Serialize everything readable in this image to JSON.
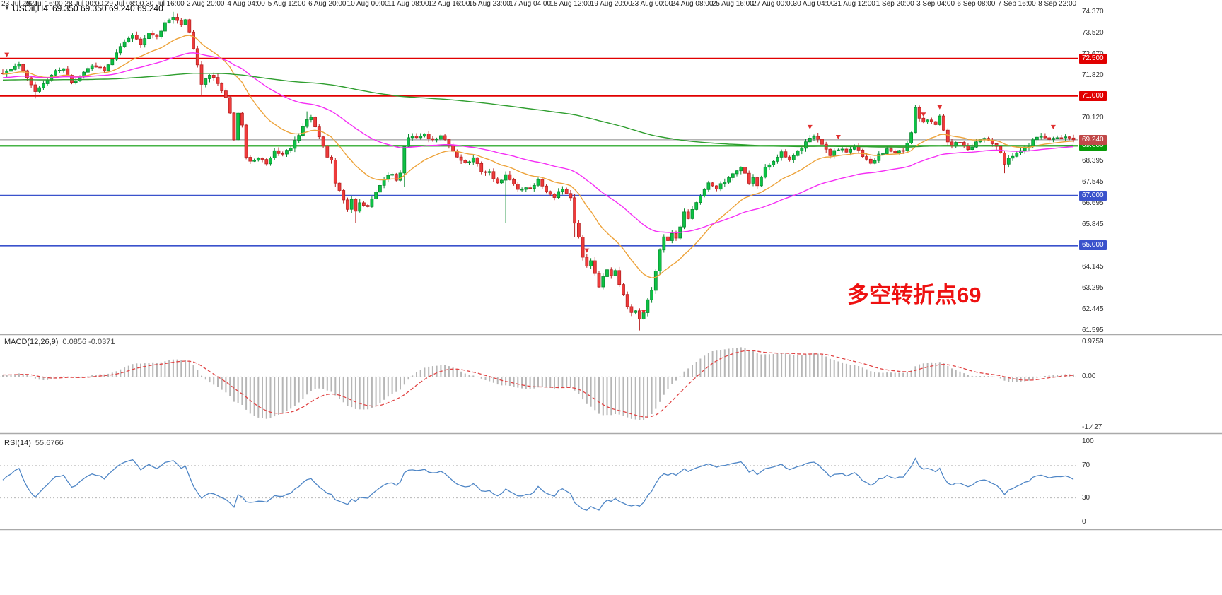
{
  "header": {
    "collapse_icon": "▼",
    "symbol_timeframe": "USOil,H4",
    "ohlc": "69.350 69.350 69.240 69.240"
  },
  "chart_data": {
    "type": "candlestick+indicators",
    "symbol": "USOil",
    "timeframe": "H4",
    "ohlc_display": {
      "open": "69.350",
      "high": "69.350",
      "low": "69.240",
      "close": "69.240"
    },
    "candle_count": 265,
    "price_range": {
      "min": 61.5,
      "max": 74.62
    },
    "price_axis_labels": [
      74.37,
      73.52,
      72.67,
      71.82,
      70.12,
      68.395,
      67.545,
      66.695,
      65.845,
      64.145,
      63.295,
      62.445,
      61.595
    ],
    "time_labels": [
      "23 Jul 2021",
      "26 Jul 16:00",
      "28 Jul 00:00",
      "29 Jul 08:00",
      "30 Jul 16:00",
      "2 Aug 20:00",
      "4 Aug 04:00",
      "5 Aug 12:00",
      "6 Aug 20:00",
      "10 Aug 00:00",
      "11 Aug 08:00",
      "12 Aug 16:00",
      "15 Aug 23:00",
      "17 Aug 04:00",
      "18 Aug 12:00",
      "19 Aug 20:00",
      "23 Aug 00:00",
      "24 Aug 08:00",
      "25 Aug 16:00",
      "27 Aug 00:00",
      "30 Aug 04:00",
      "31 Aug 12:00",
      "1 Sep 20:00",
      "3 Sep 04:00",
      "6 Sep 08:00",
      "7 Sep 16:00",
      "8 Sep 22:00"
    ],
    "levels": [
      {
        "price": 72.5,
        "label": "72.500",
        "color": "#e10000"
      },
      {
        "price": 71.0,
        "label": "71.000",
        "color": "#e10000"
      },
      {
        "price": 69.0,
        "label": "69.000",
        "color": "#089b08"
      },
      {
        "price": 67.0,
        "label": "67.000",
        "color": "#3a52cc"
      },
      {
        "price": 65.0,
        "label": "65.000",
        "color": "#3a52cc"
      }
    ],
    "current_price": {
      "value": 69.24,
      "label": "69.240",
      "line_color": "#888888",
      "badge_color": "#c04848"
    },
    "colors": {
      "up": {
        "fill": "#0cc244",
        "stroke": "#0a8a31"
      },
      "down": {
        "fill": "#ee3b3b",
        "stroke": "#b82222"
      },
      "background": "#ffffff",
      "divider": "#aaaaaa"
    },
    "moving_averages": [
      {
        "name": "fast",
        "period": 20,
        "start_value": 71.9,
        "color": "#eda33b"
      },
      {
        "name": "medium",
        "period": 55,
        "start_value": 72.3,
        "color": "#f52ef5"
      },
      {
        "name": "slow",
        "period": 300,
        "start_value": 71.95,
        "color": "#2f9e2f"
      }
    ],
    "close_path_anchors": [
      [
        0,
        71.95
      ],
      [
        2,
        72.1
      ],
      [
        4,
        72.2
      ],
      [
        6,
        71.7
      ],
      [
        8,
        71.15
      ],
      [
        10,
        71.5
      ],
      [
        13,
        71.95
      ],
      [
        15,
        72.15
      ],
      [
        17,
        71.5
      ],
      [
        19,
        71.8
      ],
      [
        22,
        72.25
      ],
      [
        25,
        72.05
      ],
      [
        27,
        72.45
      ],
      [
        30,
        73.15
      ],
      [
        32,
        73.5
      ],
      [
        34,
        73.1
      ],
      [
        36,
        73.55
      ],
      [
        38,
        73.3
      ],
      [
        40,
        73.95
      ],
      [
        42,
        74.2
      ],
      [
        44,
        73.85
      ],
      [
        45,
        74.05
      ],
      [
        46,
        73.6
      ],
      [
        48,
        72.2
      ],
      [
        49,
        71.45
      ],
      [
        51,
        71.85
      ],
      [
        53,
        71.5
      ],
      [
        55,
        70.9
      ],
      [
        56,
        70.3
      ],
      [
        57,
        69.3
      ],
      [
        58,
        70.35
      ],
      [
        59,
        69.9
      ],
      [
        60,
        68.6
      ],
      [
        61,
        68.35
      ],
      [
        63,
        68.5
      ],
      [
        65,
        68.3
      ],
      [
        67,
        68.8
      ],
      [
        69,
        68.6
      ],
      [
        71,
        68.95
      ],
      [
        73,
        69.45
      ],
      [
        75,
        70.05
      ],
      [
        76,
        70.2
      ],
      [
        77,
        69.8
      ],
      [
        79,
        69.0
      ],
      [
        80,
        68.5
      ],
      [
        81,
        68.4
      ],
      [
        82,
        67.5
      ],
      [
        84,
        66.9
      ],
      [
        85,
        66.5
      ],
      [
        86,
        66.9
      ],
      [
        87,
        66.35
      ],
      [
        88,
        66.7
      ],
      [
        90,
        66.6
      ],
      [
        92,
        67.2
      ],
      [
        94,
        67.6
      ],
      [
        96,
        67.9
      ],
      [
        97,
        67.6
      ],
      [
        98,
        67.95
      ],
      [
        99,
        69.0
      ],
      [
        100,
        69.35
      ],
      [
        102,
        69.3
      ],
      [
        104,
        69.5
      ],
      [
        106,
        69.2
      ],
      [
        108,
        69.4
      ],
      [
        110,
        69.0
      ],
      [
        112,
        68.6
      ],
      [
        114,
        68.3
      ],
      [
        116,
        68.55
      ],
      [
        118,
        68.0
      ],
      [
        120,
        67.9
      ],
      [
        122,
        67.5
      ],
      [
        124,
        67.8
      ],
      [
        126,
        67.4
      ],
      [
        128,
        67.2
      ],
      [
        130,
        67.35
      ],
      [
        132,
        67.6
      ],
      [
        134,
        67.2
      ],
      [
        136,
        66.9
      ],
      [
        138,
        67.3
      ],
      [
        140,
        66.85
      ],
      [
        141,
        65.9
      ],
      [
        142,
        65.3
      ],
      [
        143,
        64.5
      ],
      [
        144,
        64.25
      ],
      [
        145,
        64.45
      ],
      [
        146,
        63.9
      ],
      [
        147,
        63.35
      ],
      [
        148,
        63.8
      ],
      [
        149,
        64.0
      ],
      [
        150,
        63.8
      ],
      [
        151,
        63.95
      ],
      [
        152,
        63.5
      ],
      [
        153,
        63.0
      ],
      [
        154,
        62.6
      ],
      [
        155,
        62.3
      ],
      [
        156,
        62.45
      ],
      [
        157,
        62.05
      ],
      [
        158,
        62.35
      ],
      [
        159,
        62.8
      ],
      [
        160,
        63.2
      ],
      [
        161,
        64.0
      ],
      [
        162,
        64.8
      ],
      [
        163,
        65.3
      ],
      [
        164,
        65.15
      ],
      [
        165,
        65.5
      ],
      [
        166,
        65.3
      ],
      [
        167,
        65.8
      ],
      [
        168,
        66.3
      ],
      [
        169,
        66.1
      ],
      [
        170,
        66.5
      ],
      [
        172,
        67.0
      ],
      [
        174,
        67.45
      ],
      [
        176,
        67.25
      ],
      [
        178,
        67.6
      ],
      [
        180,
        67.9
      ],
      [
        182,
        68.2
      ],
      [
        183,
        67.9
      ],
      [
        184,
        67.5
      ],
      [
        185,
        67.7
      ],
      [
        186,
        67.45
      ],
      [
        187,
        67.8
      ],
      [
        188,
        68.1
      ],
      [
        190,
        68.4
      ],
      [
        192,
        68.7
      ],
      [
        194,
        68.5
      ],
      [
        196,
        68.8
      ],
      [
        198,
        69.1
      ],
      [
        200,
        69.4
      ],
      [
        202,
        69.0
      ],
      [
        204,
        68.6
      ],
      [
        206,
        68.9
      ],
      [
        208,
        68.7
      ],
      [
        210,
        69.0
      ],
      [
        212,
        68.6
      ],
      [
        214,
        68.3
      ],
      [
        216,
        68.6
      ],
      [
        218,
        68.9
      ],
      [
        220,
        68.7
      ],
      [
        222,
        68.8
      ],
      [
        224,
        69.5
      ],
      [
        225,
        70.5
      ],
      [
        226,
        70.15
      ],
      [
        227,
        69.9
      ],
      [
        228,
        70.0
      ],
      [
        229,
        69.95
      ],
      [
        230,
        69.9
      ],
      [
        231,
        70.2
      ],
      [
        232,
        69.6
      ],
      [
        233,
        69.15
      ],
      [
        234,
        69.0
      ],
      [
        236,
        69.2
      ],
      [
        238,
        68.9
      ],
      [
        240,
        69.1
      ],
      [
        242,
        69.3
      ],
      [
        244,
        69.15
      ],
      [
        245,
        69.0
      ],
      [
        246,
        68.7
      ],
      [
        247,
        68.3
      ],
      [
        248,
        68.5
      ],
      [
        250,
        68.7
      ],
      [
        252,
        68.9
      ],
      [
        254,
        69.2
      ],
      [
        256,
        69.4
      ],
      [
        258,
        69.3
      ],
      [
        260,
        69.35
      ],
      [
        262,
        69.3
      ],
      [
        264,
        69.24
      ]
    ],
    "special_wicks": [
      {
        "i": 8,
        "low": 70.9
      },
      {
        "i": 42,
        "high": 74.37
      },
      {
        "i": 49,
        "low": 70.98
      },
      {
        "i": 75,
        "high": 70.38
      },
      {
        "i": 87,
        "low": 65.9
      },
      {
        "i": 99,
        "low": 67.35
      },
      {
        "i": 124,
        "low": 65.92
      },
      {
        "i": 141,
        "low": 65.35
      },
      {
        "i": 157,
        "low": 61.595
      },
      {
        "i": 225,
        "high": 70.65
      },
      {
        "i": 247,
        "low": 67.9
      }
    ],
    "markers": [
      {
        "i": 1,
        "price": 72.45
      },
      {
        "i": 144,
        "price": 64.6
      },
      {
        "i": 158,
        "price": 62.15
      },
      {
        "i": 199,
        "price": 69.55
      },
      {
        "i": 206,
        "price": 69.15
      },
      {
        "i": 227,
        "price": 70.05
      },
      {
        "i": 231,
        "price": 70.35
      },
      {
        "i": 259,
        "price": 69.55
      }
    ],
    "macd": {
      "label": "MACD(12,26,9)",
      "values_text": "0.0856 -0.0371",
      "fast": 12,
      "slow": 26,
      "signal": 9,
      "histogram_color": "#b6b6b6",
      "signal_color": "#e04444",
      "axis_labels": [
        {
          "text": "0.9759",
          "value": 0.9759
        },
        {
          "text": "0.00",
          "value": 0
        },
        {
          "text": "-1.427",
          "value": -1.427
        }
      ],
      "range": {
        "min": -1.52,
        "max": 1.08
      }
    },
    "rsi": {
      "label": "RSI(14)",
      "value_text": "55.6766",
      "period": 14,
      "color": "#4f86c6",
      "levels": [
        70,
        30
      ],
      "axis_labels": [
        {
          "text": "100",
          "value": 100
        },
        {
          "text": "70",
          "value": 70
        },
        {
          "text": "30",
          "value": 30
        },
        {
          "text": "0",
          "value": 0
        }
      ]
    },
    "annotation": {
      "text": "多空转折点69",
      "color": "#ee1111"
    }
  }
}
